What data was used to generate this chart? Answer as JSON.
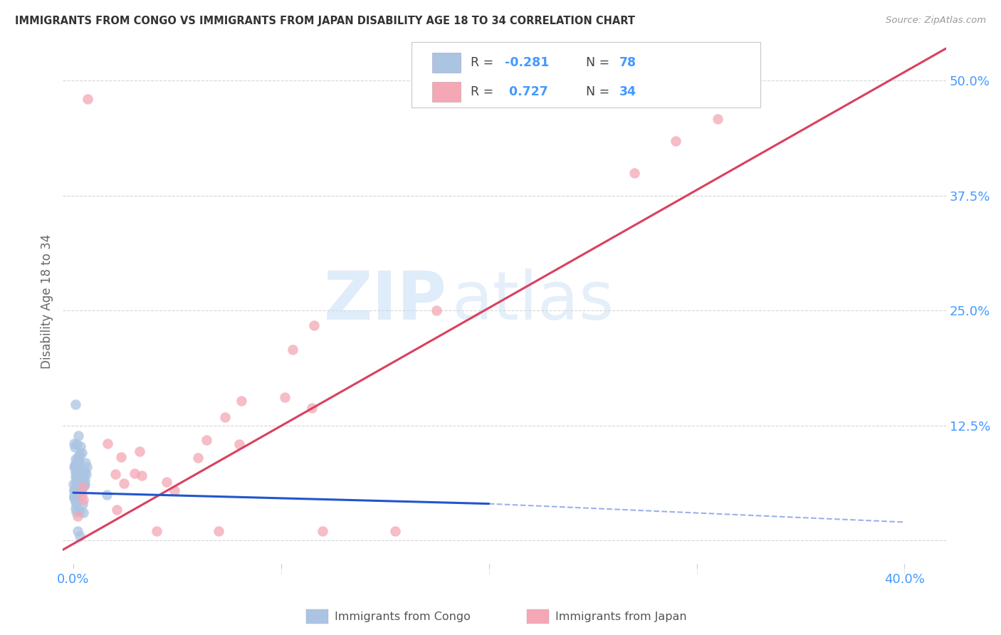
{
  "title": "IMMIGRANTS FROM CONGO VS IMMIGRANTS FROM JAPAN DISABILITY AGE 18 TO 34 CORRELATION CHART",
  "source": "Source: ZipAtlas.com",
  "ylabel": "Disability Age 18 to 34",
  "x_tick_positions": [
    0.0,
    0.1,
    0.2,
    0.3,
    0.4
  ],
  "x_tick_labels": [
    "0.0%",
    "",
    "",
    "",
    "40.0%"
  ],
  "y_tick_positions": [
    0.0,
    0.125,
    0.25,
    0.375,
    0.5
  ],
  "y_tick_labels": [
    "",
    "12.5%",
    "25.0%",
    "37.5%",
    "50.0%"
  ],
  "xlim": [
    -0.005,
    0.42
  ],
  "ylim": [
    -0.025,
    0.545
  ],
  "congo_R": -0.281,
  "congo_N": 78,
  "japan_R": 0.727,
  "japan_N": 34,
  "congo_color": "#aac4e2",
  "japan_color": "#f4a7b5",
  "congo_line_color": "#2255cc",
  "japan_line_color": "#d94060",
  "legend_label_congo": "Immigrants from Congo",
  "legend_label_japan": "Immigrants from Japan",
  "watermark_zip": "ZIP",
  "watermark_atlas": "atlas",
  "background_color": "#ffffff",
  "grid_color": "#cccccc",
  "title_color": "#333333",
  "source_color": "#999999",
  "axis_label_color": "#4499ff",
  "ylabel_color": "#666666"
}
